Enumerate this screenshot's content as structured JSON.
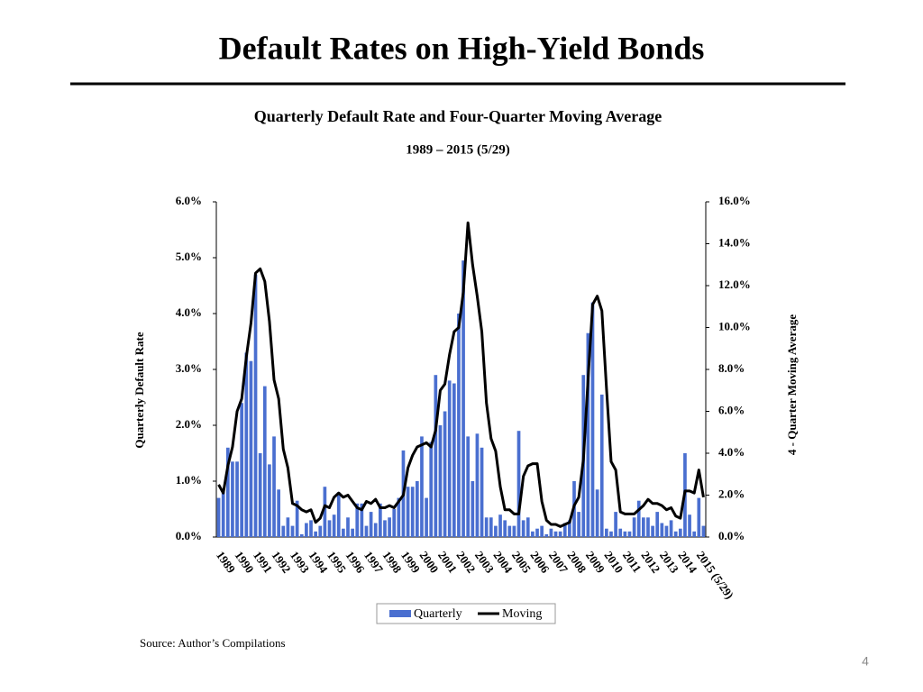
{
  "slide_title": "Default Rates on High-Yield Bonds",
  "source": "Source: Author’s Compilations",
  "page_number": "4",
  "chart_data": {
    "type": "bar",
    "title": "Quarterly Default Rate and Four-Quarter Moving Average",
    "subtitle": "1989 – 2015 (5/29)",
    "ylabel": "Quarterly Default Rate",
    "y2label": "4 - Quarter Moving Average",
    "categories": [
      "1989",
      null,
      null,
      null,
      "1990",
      null,
      null,
      null,
      "1991",
      null,
      null,
      null,
      "1992",
      null,
      null,
      null,
      "1993",
      null,
      null,
      null,
      "1994",
      null,
      null,
      null,
      "1995",
      null,
      null,
      null,
      "1996",
      null,
      null,
      null,
      "1997",
      null,
      null,
      null,
      "1998",
      null,
      null,
      null,
      "1999",
      null,
      null,
      null,
      "2000",
      null,
      null,
      null,
      "2001",
      null,
      null,
      null,
      "2002",
      null,
      null,
      null,
      "2003",
      null,
      null,
      null,
      "2004",
      null,
      null,
      null,
      "2005",
      null,
      null,
      null,
      "2006",
      null,
      null,
      null,
      "2007",
      null,
      null,
      null,
      "2008",
      null,
      null,
      null,
      "2009",
      null,
      null,
      null,
      "2010",
      null,
      null,
      null,
      "2011",
      null,
      null,
      null,
      "2012",
      null,
      null,
      null,
      "2013",
      null,
      null,
      null,
      "2014",
      null,
      null,
      null,
      "2015 (5/29)",
      null
    ],
    "series": [
      {
        "name": "Quarterly",
        "type": "bar",
        "color": "#4a6fd0",
        "values": [
          0.7,
          0.85,
          1.6,
          1.35,
          1.35,
          2.4,
          3.3,
          3.15,
          4.7,
          1.5,
          2.7,
          1.3,
          1.8,
          0.85,
          0.2,
          0.35,
          0.2,
          0.65,
          0.05,
          0.25,
          0.3,
          0.1,
          0.2,
          0.9,
          0.3,
          0.4,
          0.8,
          0.15,
          0.35,
          0.15,
          0.6,
          0.6,
          0.2,
          0.45,
          0.25,
          0.6,
          0.3,
          0.35,
          0.5,
          0.7,
          1.55,
          0.9,
          0.9,
          1.0,
          1.8,
          0.7,
          1.7,
          2.9,
          2.0,
          2.25,
          2.8,
          2.75,
          4.0,
          4.95,
          1.8,
          1.0,
          1.85,
          1.6,
          0.35,
          0.35,
          0.2,
          0.4,
          0.3,
          0.2,
          0.2,
          1.9,
          0.3,
          0.35,
          0.1,
          0.15,
          0.2,
          0.05,
          0.15,
          0.1,
          0.1,
          0.25,
          0.3,
          1.0,
          0.45,
          2.9,
          3.65,
          4.2,
          0.85,
          2.55,
          0.15,
          0.1,
          0.45,
          0.15,
          0.1,
          0.1,
          0.35,
          0.65,
          0.35,
          0.35,
          0.2,
          0.45,
          0.25,
          0.2,
          0.3,
          0.1,
          0.15,
          1.5,
          0.4,
          0.1,
          0.7,
          0.2
        ]
      },
      {
        "name": "Moving",
        "type": "line",
        "axis": "y2",
        "color": "#000000",
        "values": [
          2.5,
          2.1,
          3.4,
          4.3,
          6.0,
          6.6,
          8.6,
          10.2,
          12.6,
          12.8,
          12.2,
          10.3,
          7.5,
          6.6,
          4.2,
          3.3,
          1.6,
          1.5,
          1.3,
          1.2,
          1.3,
          0.7,
          0.9,
          1.5,
          1.4,
          1.9,
          2.1,
          1.9,
          2.0,
          1.7,
          1.4,
          1.3,
          1.7,
          1.6,
          1.8,
          1.4,
          1.4,
          1.5,
          1.4,
          1.7,
          2.0,
          3.3,
          3.9,
          4.3,
          4.4,
          4.5,
          4.3,
          5.1,
          7.0,
          7.3,
          8.7,
          9.8,
          10.0,
          11.7,
          15.0,
          13.0,
          11.5,
          9.8,
          6.4,
          4.7,
          4.1,
          2.4,
          1.3,
          1.3,
          1.1,
          1.1,
          2.9,
          3.4,
          3.5,
          3.5,
          1.7,
          0.8,
          0.6,
          0.6,
          0.5,
          0.6,
          0.7,
          1.5,
          1.9,
          3.7,
          7.5,
          11.1,
          11.5,
          10.8,
          7.1,
          3.6,
          3.2,
          1.2,
          1.1,
          1.1,
          1.1,
          1.3,
          1.5,
          1.8,
          1.6,
          1.6,
          1.5,
          1.3,
          1.4,
          1.0,
          0.9,
          2.2,
          2.2,
          2.1,
          3.2,
          1.9
        ]
      }
    ],
    "ylim": [
      0,
      6
    ],
    "yticks": [
      {
        "value": 0,
        "label": "0.0%"
      },
      {
        "value": 1,
        "label": "1.0%"
      },
      {
        "value": 2,
        "label": "2.0%"
      },
      {
        "value": 3,
        "label": "3.0%"
      },
      {
        "value": 4,
        "label": "4.0%"
      },
      {
        "value": 5,
        "label": "5.0%"
      },
      {
        "value": 6,
        "label": "6.0%"
      }
    ],
    "y2lim": [
      0,
      16
    ],
    "y2ticks": [
      {
        "value": 0,
        "label": "0.0%"
      },
      {
        "value": 2,
        "label": "2.0%"
      },
      {
        "value": 4,
        "label": "4.0%"
      },
      {
        "value": 6,
        "label": "6.0%"
      },
      {
        "value": 8,
        "label": "8.0%"
      },
      {
        "value": 10,
        "label": "10.0%"
      },
      {
        "value": 12,
        "label": "12.0%"
      },
      {
        "value": 14,
        "label": "14.0%"
      },
      {
        "value": 16,
        "label": "16.0%"
      }
    ],
    "grid": false,
    "legend": "bottom"
  }
}
